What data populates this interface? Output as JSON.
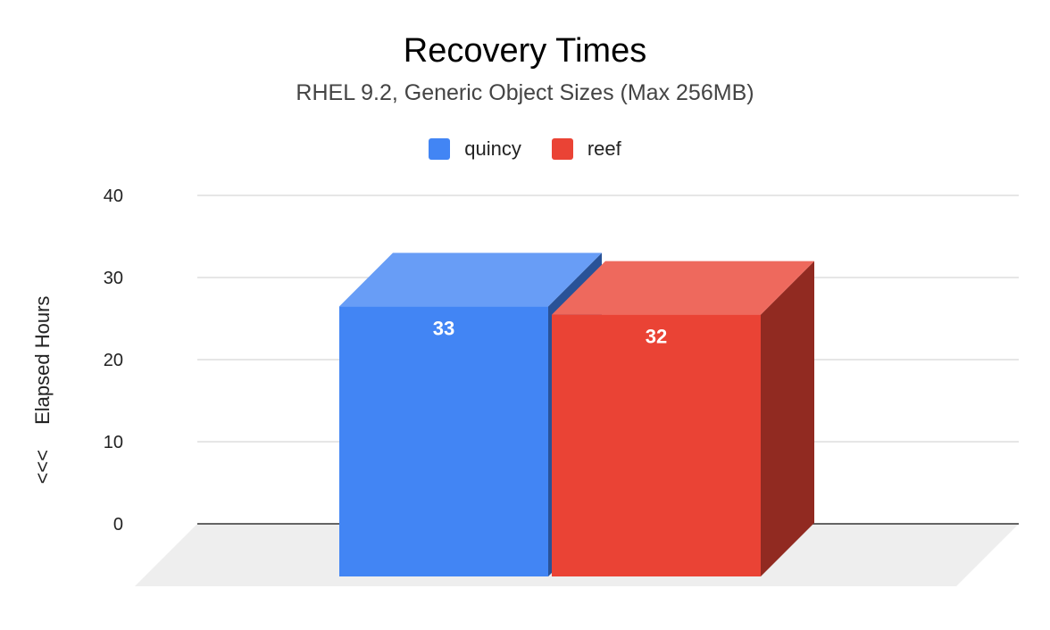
{
  "chart_data": {
    "type": "bar",
    "title": "Recovery Times",
    "subtitle": "RHEL 9.2, Generic Object Sizes (Max 256MB)",
    "ylabel_arrow": "<<<",
    "ylabel": "Elapsed Hours",
    "xlabel": "",
    "categories": [
      ""
    ],
    "series": [
      {
        "name": "quincy",
        "values": [
          33
        ],
        "color": "#4285f4"
      },
      {
        "name": "reef",
        "values": [
          32
        ],
        "color": "#ea4335"
      }
    ],
    "data_labels": [
      "33",
      "32"
    ],
    "ylim": [
      0,
      40
    ],
    "y_ticks": [
      0,
      10,
      20,
      30,
      40
    ],
    "grid": true,
    "legend_position": "top",
    "style": "3d"
  }
}
